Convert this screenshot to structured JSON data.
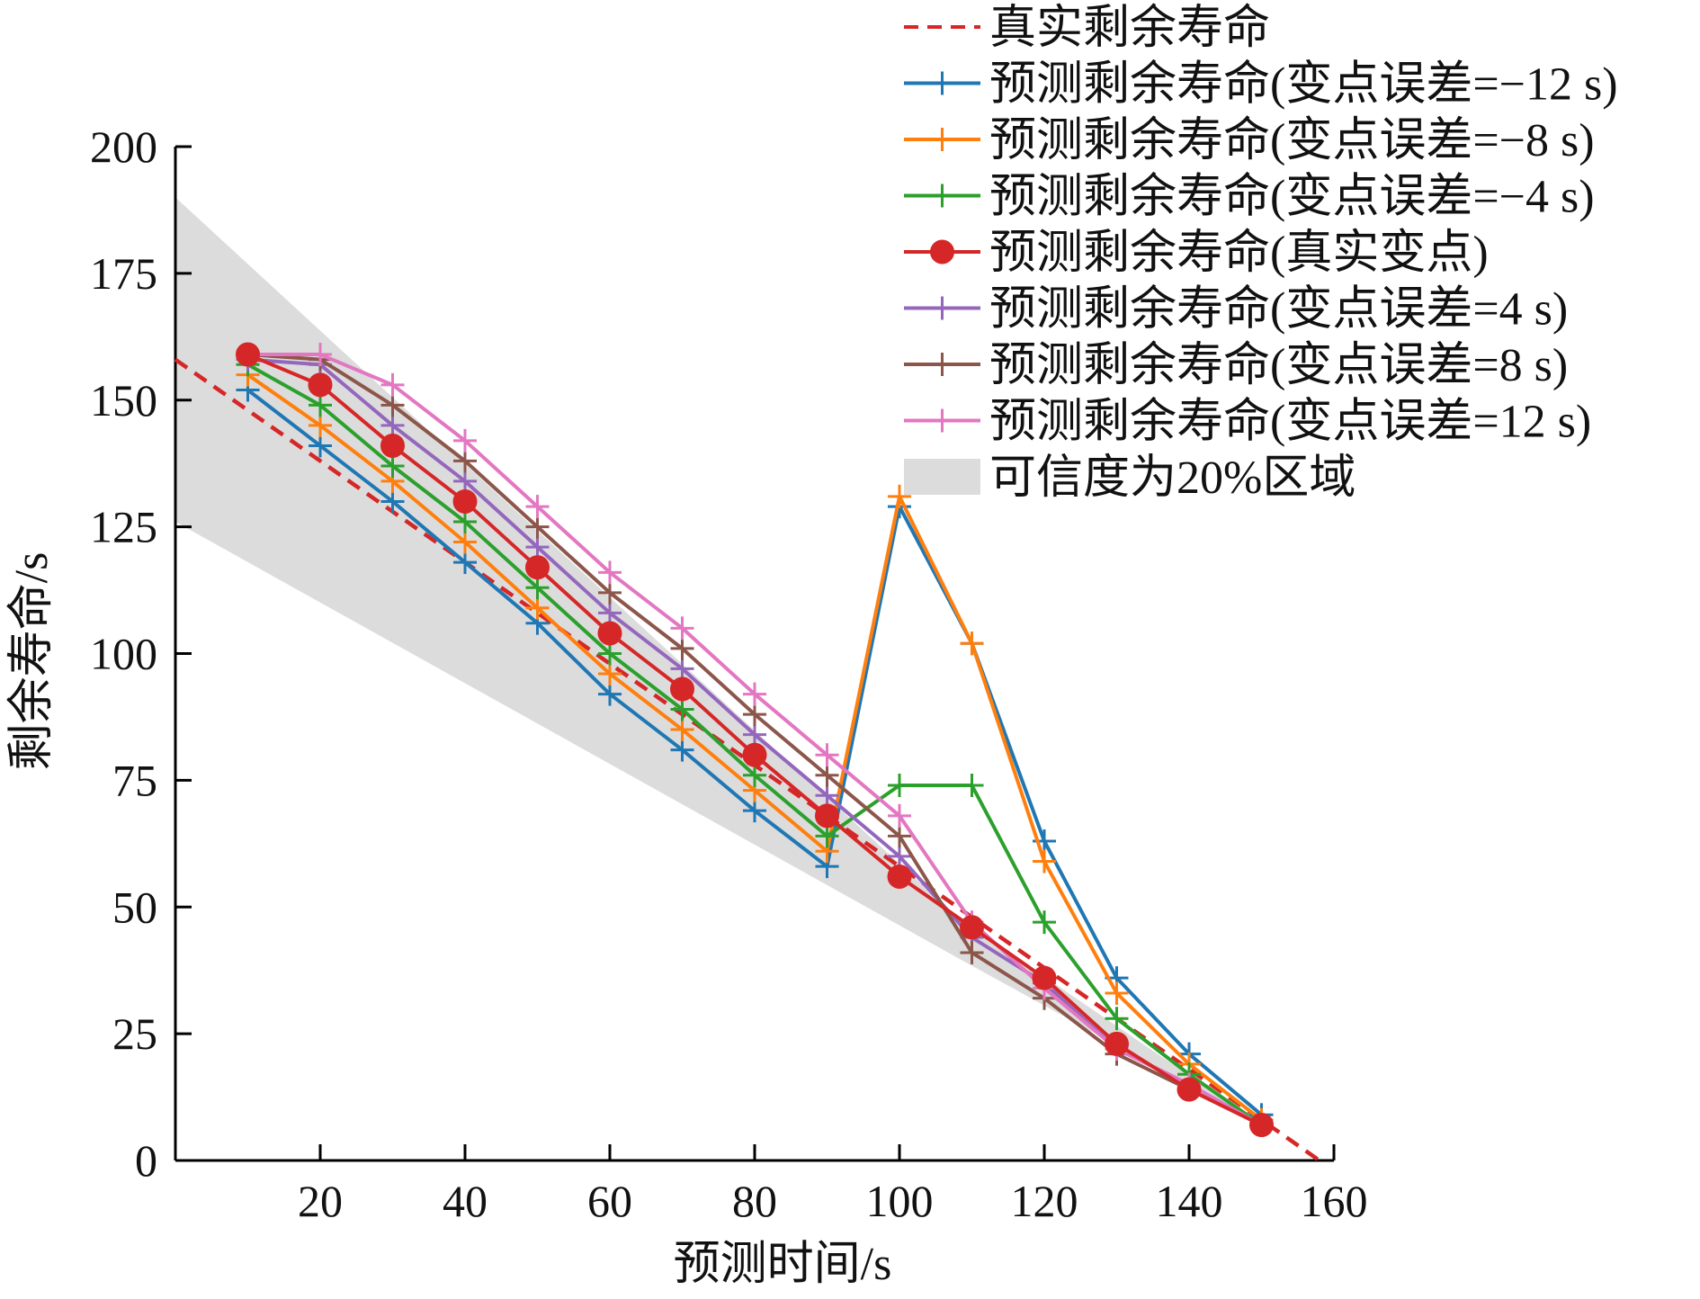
{
  "chart_data": {
    "type": "line",
    "xlabel": "预测时间/s",
    "ylabel": "剩余寿命/s",
    "xlim": [
      0,
      160
    ],
    "ylim": [
      0,
      200
    ],
    "x_ticks": [
      20,
      40,
      60,
      80,
      100,
      120,
      140,
      160
    ],
    "y_ticks": [
      0,
      25,
      50,
      75,
      100,
      125,
      150,
      175,
      200
    ],
    "legend_position": "top-right",
    "grid": false,
    "band": {
      "name": "可信度为20%区域",
      "color": "#dcdcdc",
      "upper": [
        [
          0,
          190
        ],
        [
          108,
          48
        ],
        [
          150,
          7
        ]
      ],
      "lower": [
        [
          0,
          126
        ],
        [
          108,
          40
        ],
        [
          150,
          7
        ]
      ]
    },
    "series": [
      {
        "name": "真实剩余寿命",
        "color": "#d62728",
        "style": "dashed",
        "marker": "none",
        "x": [
          0,
          158
        ],
        "y": [
          158,
          0
        ]
      },
      {
        "name": "预测剩余寿命(变点误差=−12 s)",
        "color": "#1f77b4",
        "style": "solid",
        "marker": "plus",
        "x": [
          10,
          20,
          30,
          40,
          50,
          60,
          70,
          80,
          90,
          100,
          110,
          120,
          130,
          140,
          150
        ],
        "y": [
          152,
          141,
          130,
          118,
          106,
          92,
          81,
          69,
          58,
          129,
          102,
          63,
          36,
          21,
          9
        ]
      },
      {
        "name": "预测剩余寿命(变点误差=−8 s)",
        "color": "#ff7f0e",
        "style": "solid",
        "marker": "plus",
        "x": [
          10,
          20,
          30,
          40,
          50,
          60,
          70,
          80,
          90,
          100,
          110,
          120,
          130,
          140,
          150
        ],
        "y": [
          155,
          145,
          134,
          122,
          109,
          96,
          85,
          73,
          61,
          131,
          102,
          59,
          33,
          19,
          8
        ]
      },
      {
        "name": "预测剩余寿命(变点误差=−4 s)",
        "color": "#2ca02c",
        "style": "solid",
        "marker": "plus",
        "x": [
          10,
          20,
          30,
          40,
          50,
          60,
          70,
          80,
          90,
          100,
          110,
          120,
          130,
          140,
          150
        ],
        "y": [
          157,
          149,
          137,
          126,
          113,
          100,
          89,
          76,
          64,
          74,
          74,
          47,
          28,
          17,
          7
        ]
      },
      {
        "name": "预测剩余寿命(真实变点)",
        "color": "#d62728",
        "style": "solid",
        "marker": "circle",
        "x": [
          10,
          20,
          30,
          40,
          50,
          60,
          70,
          80,
          90,
          100,
          110,
          120,
          130,
          140,
          150
        ],
        "y": [
          159,
          153,
          141,
          130,
          117,
          104,
          93,
          80,
          68,
          56,
          46,
          36,
          23,
          14,
          7
        ]
      },
      {
        "name": "预测剩余寿命(变点误差=4 s)",
        "color": "#9467bd",
        "style": "solid",
        "marker": "plus",
        "x": [
          10,
          20,
          30,
          40,
          50,
          60,
          70,
          80,
          90,
          100,
          110,
          120,
          130,
          140,
          150
        ],
        "y": [
          158,
          157,
          145,
          134,
          121,
          108,
          97,
          84,
          72,
          60,
          44,
          35,
          22,
          15,
          7
        ]
      },
      {
        "name": "预测剩余寿命(变点误差=8 s)",
        "color": "#8c564b",
        "style": "solid",
        "marker": "plus",
        "x": [
          10,
          20,
          30,
          40,
          50,
          60,
          70,
          80,
          90,
          100,
          110,
          120,
          130,
          140,
          150
        ],
        "y": [
          159,
          158,
          149,
          138,
          125,
          112,
          101,
          88,
          76,
          64,
          41,
          32,
          21,
          14,
          7
        ]
      },
      {
        "name": "预测剩余寿命(变点误差=12 s)",
        "color": "#e377c2",
        "style": "solid",
        "marker": "plus",
        "x": [
          10,
          20,
          30,
          40,
          50,
          60,
          70,
          80,
          90,
          100,
          110,
          120,
          130,
          140,
          150
        ],
        "y": [
          159,
          159,
          153,
          142,
          129,
          116,
          105,
          92,
          80,
          68,
          47,
          34,
          22,
          15,
          7
        ]
      }
    ]
  }
}
